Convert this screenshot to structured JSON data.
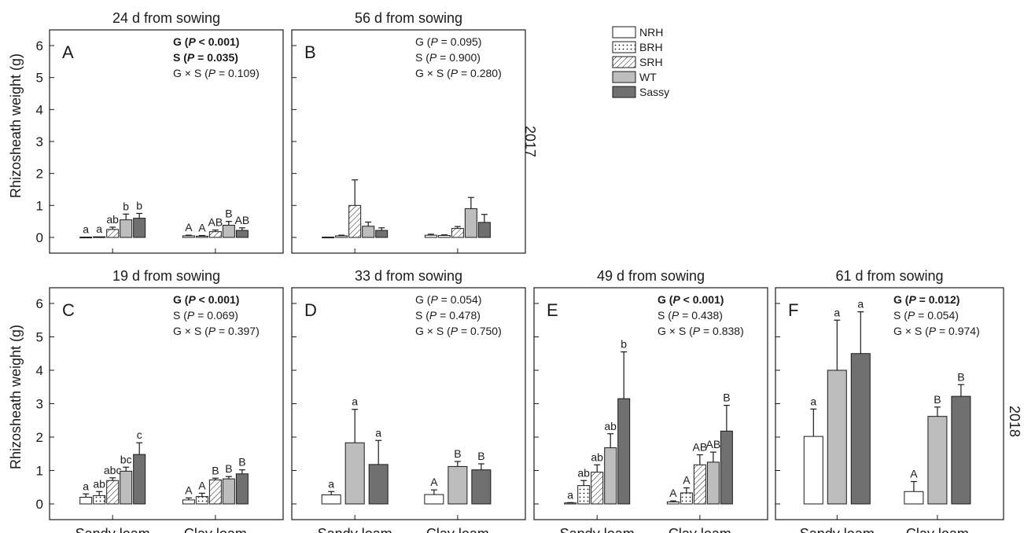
{
  "figure": {
    "y_axis_label": "Rhizosheath weight (g)",
    "year_labels": [
      "2017",
      "2018"
    ],
    "legend": [
      {
        "label": "NRH",
        "fill": "none"
      },
      {
        "label": "BRH",
        "fill": "dots"
      },
      {
        "label": "SRH",
        "fill": "hatch"
      },
      {
        "label": "WT",
        "fill": "#bdbdbd"
      },
      {
        "label": "Sassy",
        "fill": "#707070"
      }
    ]
  },
  "chart_data": [
    {
      "panel": "A",
      "title": "24 d from sowing",
      "type": "bar",
      "ylim": [
        0,
        6
      ],
      "yticks": [
        "0",
        "1",
        "2",
        "3",
        "4",
        "5",
        "6"
      ],
      "categories": [
        "Sandy loam",
        "Clay loam"
      ],
      "show_xlabels": false,
      "stats": [
        {
          "label": "G",
          "p": "< 0.001",
          "bold": true
        },
        {
          "label": "S",
          "p": "= 0.035",
          "bold": true
        },
        {
          "label": "G × S",
          "p": "= 0.109",
          "bold": false
        }
      ],
      "groups": [
        {
          "category": "Sandy loam",
          "bars": [
            {
              "g": "NRH",
              "value": 0.01,
              "err": 0,
              "letter": "a"
            },
            {
              "g": "BRH",
              "value": 0.02,
              "err": 0,
              "letter": "a"
            },
            {
              "g": "SRH",
              "value": 0.25,
              "err": 0.07,
              "letter": "ab"
            },
            {
              "g": "WT",
              "value": 0.55,
              "err": 0.18,
              "letter": "b"
            },
            {
              "g": "Sassy",
              "value": 0.6,
              "err": 0.15,
              "letter": "b"
            }
          ]
        },
        {
          "category": "Clay loam",
          "bars": [
            {
              "g": "NRH",
              "value": 0.05,
              "err": 0.02,
              "letter": "A"
            },
            {
              "g": "BRH",
              "value": 0.04,
              "err": 0.02,
              "letter": "A"
            },
            {
              "g": "SRH",
              "value": 0.18,
              "err": 0.05,
              "letter": "AB"
            },
            {
              "g": "WT",
              "value": 0.38,
              "err": 0.12,
              "letter": "B"
            },
            {
              "g": "Sassy",
              "value": 0.22,
              "err": 0.08,
              "letter": "AB"
            }
          ]
        }
      ]
    },
    {
      "panel": "B",
      "title": "56 d from sowing",
      "type": "bar",
      "ylim": [
        0,
        6
      ],
      "yticks": [
        "",
        "",
        "",
        "",
        "",
        "",
        ""
      ],
      "categories": [
        "Sandy loam",
        "Clay loam"
      ],
      "show_xlabels": false,
      "stats": [
        {
          "label": "G",
          "p": "= 0.095",
          "bold": false
        },
        {
          "label": "S",
          "p": "= 0.900",
          "bold": false
        },
        {
          "label": "G × S",
          "p": "= 0.280",
          "bold": false
        }
      ],
      "groups": [
        {
          "category": "Sandy loam",
          "bars": [
            {
              "g": "NRH",
              "value": 0.01,
              "err": 0,
              "letter": ""
            },
            {
              "g": "BRH",
              "value": 0.05,
              "err": 0.02,
              "letter": ""
            },
            {
              "g": "SRH",
              "value": 1.0,
              "err": 0.8,
              "letter": ""
            },
            {
              "g": "WT",
              "value": 0.35,
              "err": 0.13,
              "letter": ""
            },
            {
              "g": "Sassy",
              "value": 0.22,
              "err": 0.08,
              "letter": ""
            }
          ]
        },
        {
          "category": "Clay loam",
          "bars": [
            {
              "g": "NRH",
              "value": 0.07,
              "err": 0.03,
              "letter": ""
            },
            {
              "g": "BRH",
              "value": 0.06,
              "err": 0.02,
              "letter": ""
            },
            {
              "g": "SRH",
              "value": 0.28,
              "err": 0.06,
              "letter": ""
            },
            {
              "g": "WT",
              "value": 0.9,
              "err": 0.35,
              "letter": ""
            },
            {
              "g": "Sassy",
              "value": 0.47,
              "err": 0.25,
              "letter": ""
            }
          ]
        }
      ]
    },
    {
      "panel": "C",
      "title": "19 d from sowing",
      "type": "bar",
      "ylim": [
        0,
        6
      ],
      "yticks": [
        "0",
        "1",
        "2",
        "3",
        "4",
        "5",
        "6"
      ],
      "categories": [
        "Sandy loam",
        "Clay loam"
      ],
      "show_xlabels": true,
      "stats": [
        {
          "label": "G",
          "p": "< 0.001",
          "bold": true
        },
        {
          "label": "S",
          "p": "= 0.069",
          "bold": false
        },
        {
          "label": "G × S",
          "p": "= 0.397",
          "bold": false
        }
      ],
      "groups": [
        {
          "category": "Sandy loam",
          "bars": [
            {
              "g": "NRH",
              "value": 0.2,
              "err": 0.1,
              "letter": "a"
            },
            {
              "g": "BRH",
              "value": 0.25,
              "err": 0.12,
              "letter": "ab"
            },
            {
              "g": "SRH",
              "value": 0.7,
              "err": 0.08,
              "letter": "abc"
            },
            {
              "g": "WT",
              "value": 0.98,
              "err": 0.12,
              "letter": "bc"
            },
            {
              "g": "Sassy",
              "value": 1.48,
              "err": 0.35,
              "letter": "c"
            }
          ]
        },
        {
          "category": "Clay loam",
          "bars": [
            {
              "g": "NRH",
              "value": 0.12,
              "err": 0.06,
              "letter": "A"
            },
            {
              "g": "BRH",
              "value": 0.22,
              "err": 0.1,
              "letter": "A"
            },
            {
              "g": "SRH",
              "value": 0.72,
              "err": 0.05,
              "letter": "B"
            },
            {
              "g": "WT",
              "value": 0.75,
              "err": 0.07,
              "letter": "B"
            },
            {
              "g": "Sassy",
              "value": 0.9,
              "err": 0.12,
              "letter": "B"
            }
          ]
        }
      ]
    },
    {
      "panel": "D",
      "title": "33 d from sowing",
      "type": "bar",
      "ylim": [
        0,
        6
      ],
      "yticks": [
        "",
        "",
        "",
        "",
        "",
        "",
        ""
      ],
      "categories": [
        "Sandy loam",
        "Clay loam"
      ],
      "show_xlabels": true,
      "stats": [
        {
          "label": "G",
          "p": "= 0.054",
          "bold": false
        },
        {
          "label": "S",
          "p": "= 0.478",
          "bold": false
        },
        {
          "label": "G × S",
          "p": "= 0.750",
          "bold": false
        }
      ],
      "groups": [
        {
          "category": "Sandy loam",
          "bars": [
            {
              "g": "NRH",
              "value": 0.27,
              "err": 0.1,
              "letter": "a"
            },
            {
              "g": "WT",
              "value": 1.83,
              "err": 1.0,
              "letter": "a"
            },
            {
              "g": "Sassy",
              "value": 1.18,
              "err": 0.72,
              "letter": "a"
            }
          ]
        },
        {
          "category": "Clay loam",
          "bars": [
            {
              "g": "NRH",
              "value": 0.28,
              "err": 0.14,
              "letter": "A"
            },
            {
              "g": "WT",
              "value": 1.12,
              "err": 0.15,
              "letter": "B"
            },
            {
              "g": "Sassy",
              "value": 1.02,
              "err": 0.18,
              "letter": "B"
            }
          ]
        }
      ]
    },
    {
      "panel": "E",
      "title": "49 d from sowing",
      "type": "bar",
      "ylim": [
        0,
        6
      ],
      "yticks": [
        "",
        "",
        "",
        "",
        "",
        "",
        ""
      ],
      "categories": [
        "Sandy loam",
        "Clay loam"
      ],
      "show_xlabels": true,
      "stats": [
        {
          "label": "G",
          "p": "< 0.001",
          "bold": true
        },
        {
          "label": "S",
          "p": "= 0.438",
          "bold": false
        },
        {
          "label": "G × S",
          "p": "= 0.838",
          "bold": false
        }
      ],
      "groups": [
        {
          "category": "Sandy loam",
          "bars": [
            {
              "g": "NRH",
              "value": 0.03,
              "err": 0.01,
              "letter": "a"
            },
            {
              "g": "BRH",
              "value": 0.55,
              "err": 0.15,
              "letter": "ab"
            },
            {
              "g": "SRH",
              "value": 0.95,
              "err": 0.22,
              "letter": "ab"
            },
            {
              "g": "WT",
              "value": 1.68,
              "err": 0.42,
              "letter": "ab"
            },
            {
              "g": "Sassy",
              "value": 3.15,
              "err": 1.4,
              "letter": "b"
            }
          ]
        },
        {
          "category": "Clay loam",
          "bars": [
            {
              "g": "NRH",
              "value": 0.06,
              "err": 0.03,
              "letter": "A"
            },
            {
              "g": "BRH",
              "value": 0.33,
              "err": 0.15,
              "letter": "A"
            },
            {
              "g": "SRH",
              "value": 1.17,
              "err": 0.3,
              "letter": "AB"
            },
            {
              "g": "WT",
              "value": 1.25,
              "err": 0.3,
              "letter": "AB"
            },
            {
              "g": "Sassy",
              "value": 2.18,
              "err": 0.77,
              "letter": "B"
            }
          ]
        }
      ]
    },
    {
      "panel": "F",
      "title": "61 d from sowing",
      "type": "bar",
      "ylim": [
        0,
        6
      ],
      "yticks": [
        "",
        "",
        "",
        "",
        "",
        "",
        ""
      ],
      "categories": [
        "Sandy loam",
        "Clay loam"
      ],
      "show_xlabels": true,
      "stats": [
        {
          "label": "G",
          "p": "= 0.012",
          "bold": true
        },
        {
          "label": "S",
          "p": "= 0.054",
          "bold": false
        },
        {
          "label": "G × S",
          "p": "= 0.974",
          "bold": false
        }
      ],
      "groups": [
        {
          "category": "Sandy loam",
          "bars": [
            {
              "g": "NRH",
              "value": 2.02,
              "err": 0.82,
              "letter": "a"
            },
            {
              "g": "WT",
              "value": 4.0,
              "err": 1.5,
              "letter": "a"
            },
            {
              "g": "Sassy",
              "value": 4.5,
              "err": 1.25,
              "letter": "a"
            }
          ]
        },
        {
          "category": "Clay loam",
          "bars": [
            {
              "g": "NRH",
              "value": 0.37,
              "err": 0.3,
              "letter": "A"
            },
            {
              "g": "WT",
              "value": 2.62,
              "err": 0.28,
              "letter": "B"
            },
            {
              "g": "Sassy",
              "value": 3.22,
              "err": 0.35,
              "letter": "B"
            }
          ]
        }
      ]
    }
  ]
}
